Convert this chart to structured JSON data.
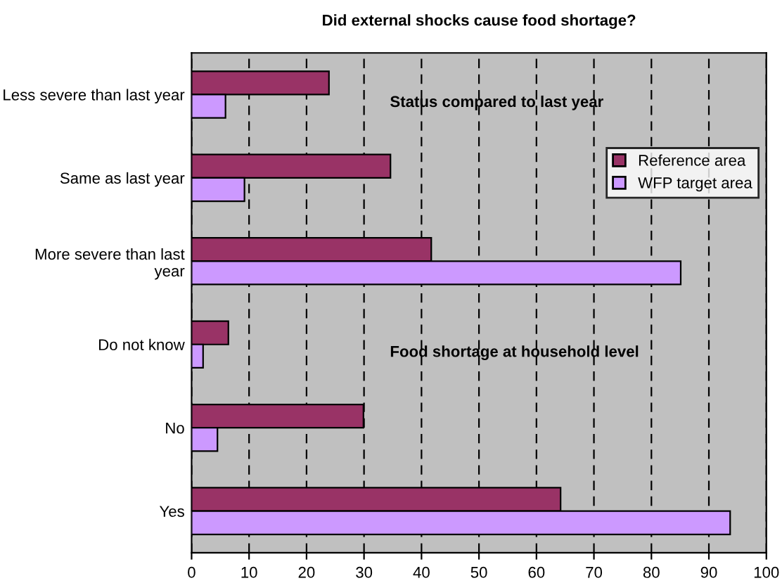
{
  "chart_data": {
    "type": "bar",
    "orientation": "horizontal",
    "title": "Did external shocks cause food shortage?",
    "categories": [
      "Less severe than last year",
      "Same as last year",
      "More severe than last year",
      "Do not know",
      "No",
      "Yes"
    ],
    "series": [
      {
        "name": "Reference area",
        "color": "#993366",
        "values": [
          23.9,
          34.6,
          41.7,
          6.4,
          29.9,
          64.2
        ]
      },
      {
        "name": "WFP target area",
        "color": "#cc99ff",
        "values": [
          5.9,
          9.2,
          85.1,
          2.0,
          4.5,
          93.7
        ]
      }
    ],
    "annotations": [
      "Status compared to last year",
      "Food shortage at household level"
    ],
    "xlim": [
      0,
      100
    ],
    "xticks": [
      0,
      10,
      20,
      30,
      40,
      50,
      60,
      70,
      80,
      90,
      100
    ],
    "grid": "x",
    "line_style": "dashed",
    "legend": "right"
  }
}
